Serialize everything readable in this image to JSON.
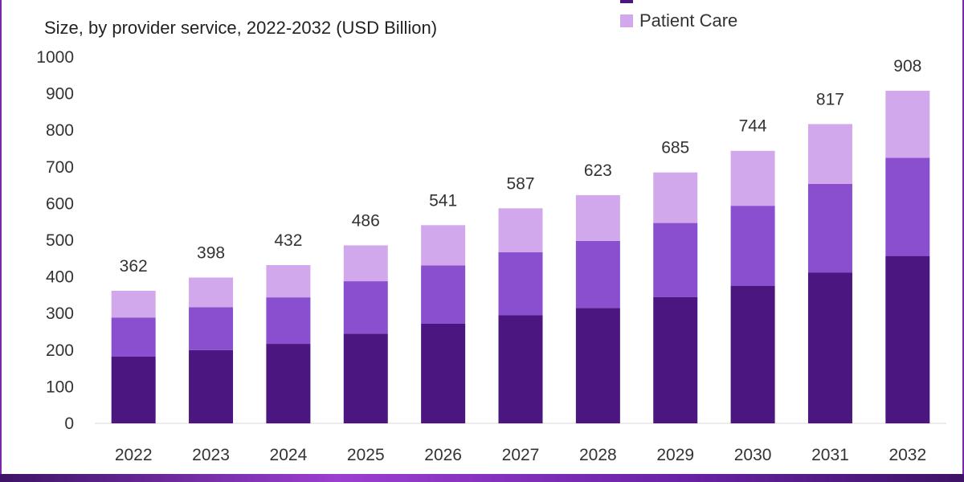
{
  "chart_data": {
    "type": "bar",
    "stacked": true,
    "title": "Size, by provider service, 2022-2032 (USD Billion)",
    "categories": [
      "2022",
      "2023",
      "2024",
      "2025",
      "2026",
      "2027",
      "2028",
      "2029",
      "2030",
      "2031",
      "2032"
    ],
    "series": [
      {
        "name": "",
        "color": "#4b167f",
        "values": [
          182,
          200,
          217,
          245,
          272,
          295,
          315,
          345,
          375,
          412,
          457
        ]
      },
      {
        "name": "",
        "color": "#8a4fcf",
        "values": [
          107,
          117,
          127,
          143,
          159,
          172,
          183,
          202,
          219,
          242,
          268
        ]
      },
      {
        "name": "Patient Care",
        "color": "#d2a8ec",
        "values": [
          73,
          81,
          88,
          98,
          110,
          120,
          125,
          138,
          150,
          163,
          183
        ]
      }
    ],
    "totals": [
      362,
      398,
      432,
      486,
      541,
      587,
      623,
      685,
      744,
      817,
      908
    ],
    "ylim": [
      0,
      1000
    ],
    "yticks": [
      0,
      100,
      200,
      300,
      400,
      500,
      600,
      700,
      800,
      900,
      1000
    ],
    "xlabel": "",
    "ylabel": "",
    "grid": false,
    "legend_position": "top-right"
  }
}
